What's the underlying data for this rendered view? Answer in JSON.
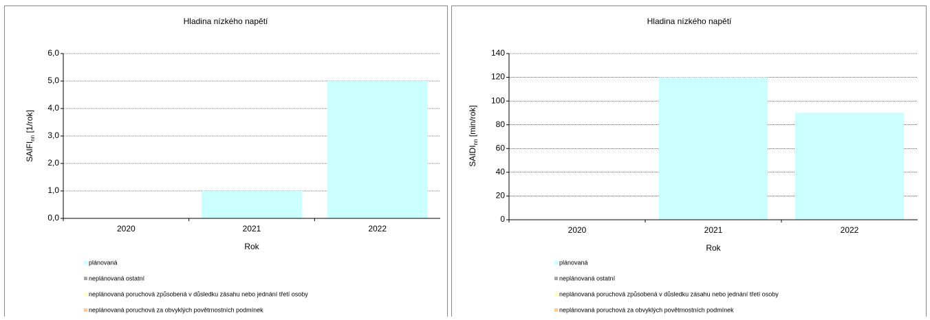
{
  "chart_data": [
    {
      "type": "stacked_bar",
      "title": "Hladina nízkého napětí",
      "y_label": [
        "SAIFI",
        "nn",
        " [1/rok]"
      ],
      "x_label": "Rok",
      "categories": [
        "2020",
        "2021",
        "2022"
      ],
      "series": [
        {
          "name": "plánovaná",
          "color": "#ccffff",
          "values": [
            0,
            1.0,
            5.0
          ]
        },
        {
          "name": "neplánovaná ostatní",
          "color": "#a6a6a6",
          "values": [
            0,
            0,
            0
          ]
        },
        {
          "name": "neplánovaná poruchová způsobená v důsledku zásahu nebo jednání třetí osoby",
          "color": "#ffffcc",
          "values": [
            0,
            0,
            0
          ]
        },
        {
          "name": "neplánovaná poruchová za obvyklých povětrnostních podmínek",
          "color": "#ffcc99",
          "values": [
            0,
            0,
            0
          ]
        }
      ],
      "ylim": [
        0,
        6
      ],
      "yticks": [
        {
          "value": 0,
          "label": "0,0"
        },
        {
          "value": 1,
          "label": "1,0"
        },
        {
          "value": 2,
          "label": "2,0"
        },
        {
          "value": 3,
          "label": "3,0"
        },
        {
          "value": 4,
          "label": "4,0"
        },
        {
          "value": 5,
          "label": "5,0"
        },
        {
          "value": 6,
          "label": "6,0"
        }
      ],
      "grid": true
    },
    {
      "type": "stacked_bar",
      "title": "Hladina nízkého napětí",
      "y_label": [
        "SAIDI",
        "nn",
        " [min/rok]"
      ],
      "x_label": "Rok",
      "categories": [
        "2020",
        "2021",
        "2022"
      ],
      "series": [
        {
          "name": "plánovaná",
          "color": "#ccffff",
          "values": [
            0,
            120,
            90
          ]
        },
        {
          "name": "neplánovaná ostatní",
          "color": "#a6a6a6",
          "values": [
            0,
            0,
            0
          ]
        },
        {
          "name": "neplánovaná poruchová způsobená v důsledku zásahu nebo jednání třetí osoby",
          "color": "#ffffcc",
          "values": [
            0,
            0,
            0
          ]
        },
        {
          "name": "neplánovaná poruchová za obvyklých povětrnostních podmínek",
          "color": "#ffcc99",
          "values": [
            0,
            0,
            0
          ]
        }
      ],
      "ylim": [
        0,
        140
      ],
      "yticks": [
        0,
        20,
        40,
        60,
        80,
        100,
        120,
        140
      ],
      "grid": true
    }
  ]
}
